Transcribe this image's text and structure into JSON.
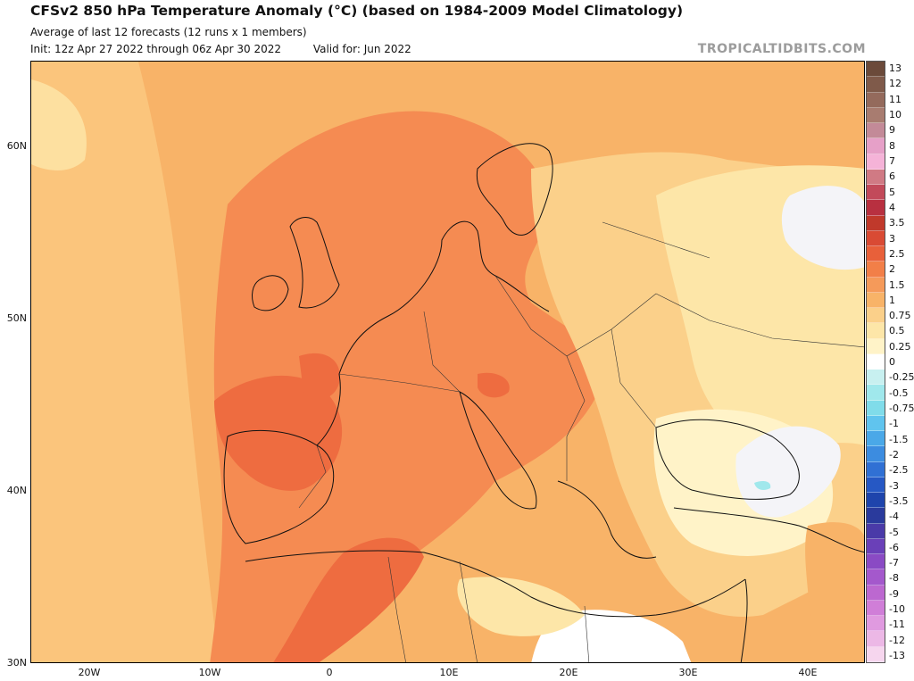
{
  "header": {
    "title": "CFSv2 850 hPa Temperature Anomaly (°C) (based on 1984-2009 Model Climatology)",
    "subtitle": "Average of last 12 forecasts (12 runs x 1 members)",
    "init": "Init: 12z Apr 27 2022 through 06z Apr 30 2022",
    "valid": "Valid for: Jun 2022",
    "brand": "TROPICALTIDBITS.COM"
  },
  "axes": {
    "lat_labels": [
      "60N",
      "50N",
      "40N",
      "30N"
    ],
    "lon_labels": [
      "20W",
      "10W",
      "0",
      "10E",
      "20E",
      "30E",
      "40E"
    ]
  },
  "colorbar": {
    "labels": [
      "13",
      "12",
      "11",
      "10",
      "9",
      "8",
      "7",
      "6",
      "5",
      "4",
      "3.5",
      "3",
      "2.5",
      "2",
      "1.5",
      "1",
      "0.75",
      "0.5",
      "0.25",
      "0",
      "-0.25",
      "-0.5",
      "-0.75",
      "-1",
      "-1.5",
      "-2",
      "-2.5",
      "-3",
      "-3.5",
      "-4",
      "-5",
      "-6",
      "-7",
      "-8",
      "-9",
      "-10",
      "-11",
      "-12",
      "-13"
    ],
    "colors": [
      "#6b4a3a",
      "#7f5a4a",
      "#946a5c",
      "#a87c70",
      "#c38a98",
      "#e6a0c8",
      "#f5b3d8",
      "#d07a84",
      "#c24a5a",
      "#b83040",
      "#c0392b",
      "#d94a34",
      "#e8603a",
      "#f27f48",
      "#f59a5a",
      "#f8b368",
      "#fbd08a",
      "#fde6a8",
      "#fff3c8",
      "#ffffff",
      "#c8f0f0",
      "#a0e8ec",
      "#80dcea",
      "#60c4ee",
      "#4aa8e8",
      "#3c8ce0",
      "#3070d4",
      "#2658c4",
      "#1e44ac",
      "#2a3a9c",
      "#4a3aa8",
      "#6a40b8",
      "#8a4ac4",
      "#a458cc",
      "#bc68d0",
      "#d07ed8",
      "#e09ae0",
      "#ecb8e6",
      "#f6d6ee"
    ]
  }
}
